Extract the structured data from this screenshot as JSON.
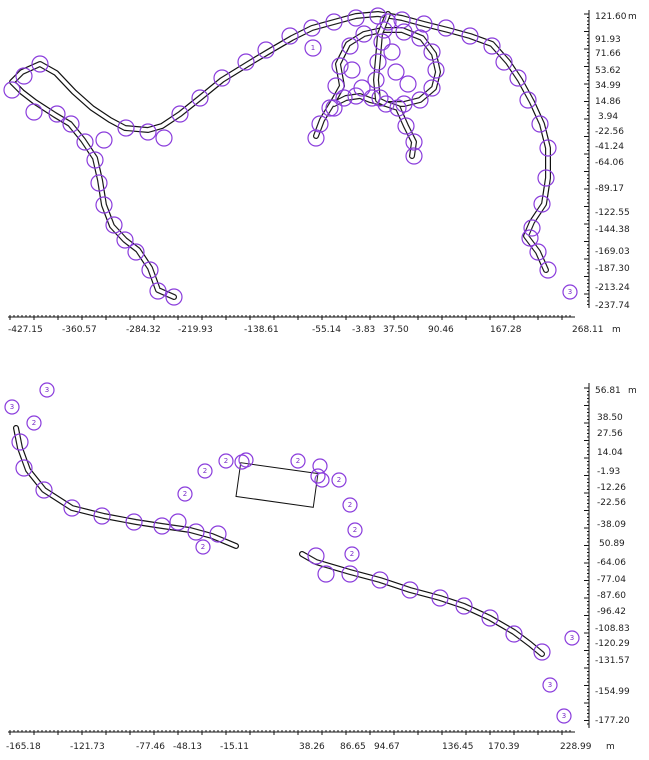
{
  "colors": {
    "marker": "#8a3cdc",
    "track": "#111111",
    "axis": "#111111"
  },
  "top_map": {
    "y_unit": "m",
    "x_unit": "m",
    "y_ticks": [
      "121.60",
      "91.93",
      "71.66",
      "53.62",
      "34.99",
      "14.86",
      "3.94",
      "-22.56",
      "-41.24",
      "-64.06",
      "-89.17",
      "-122.55",
      "-144.38",
      "-169.03",
      "-187.30",
      "-213.24",
      "-237.74"
    ],
    "x_ticks": [
      "-427.15",
      "-360.57",
      "-284.32",
      "-219.93",
      "-138.61",
      "-55.14",
      "-3.83",
      "37.50",
      "90.46",
      "167.28",
      "268.11"
    ],
    "marker_labels": [
      "1",
      "3"
    ]
  },
  "bottom_map": {
    "y_unit": "m",
    "x_unit": "m",
    "y_ticks": [
      "56.81",
      "38.50",
      "27.56",
      "14.04",
      "-1.93",
      "-12.26",
      "-22.56",
      "-38.09",
      "50.89",
      "-64.06",
      "-77.04",
      "-87.60",
      "-96.42",
      "-108.83",
      "-120.29",
      "-131.57",
      "-154.99",
      "-177.20"
    ],
    "x_ticks": [
      "-165.18",
      "-121.73",
      "-77.46",
      "-48.13",
      "-15.11",
      "38.26",
      "86.65",
      "94.67",
      "136.45",
      "170.39",
      "228.99"
    ],
    "marker_labels": [
      "3",
      "3",
      "2",
      "2",
      "2",
      "2",
      "2",
      "2",
      "2",
      "2",
      "2",
      "2",
      "3",
      "3",
      "3"
    ]
  }
}
